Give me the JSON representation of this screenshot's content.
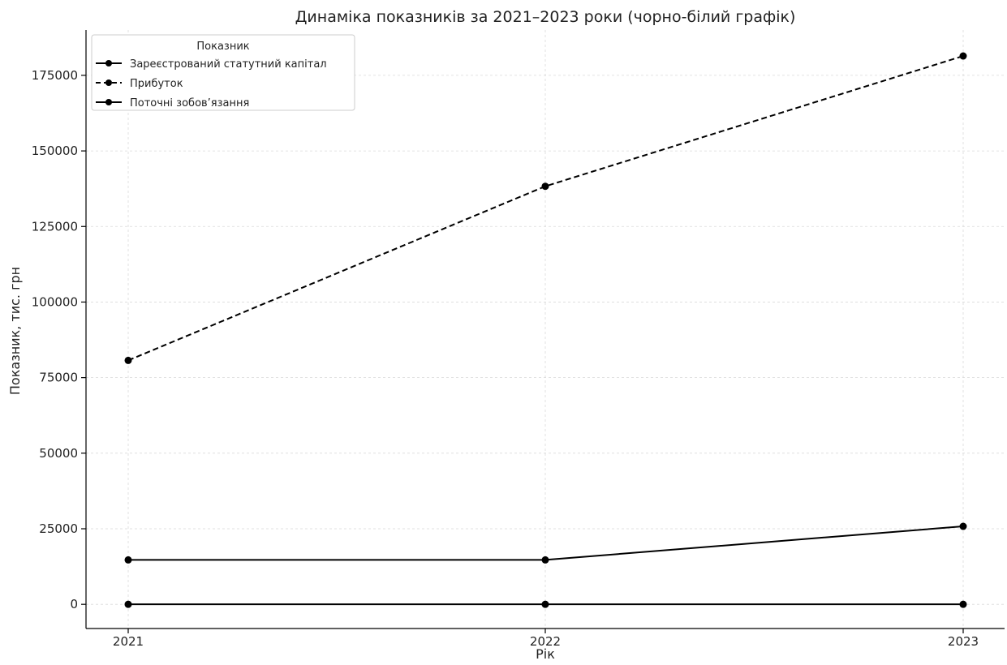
{
  "chart_data": {
    "type": "line",
    "title": "Динаміка показників за 2021–2023 роки (чорно-білий графік)",
    "xlabel": "Рік",
    "ylabel": "Показник, тис. грн",
    "x": [
      "2021",
      "2022",
      "2023"
    ],
    "ylim": [
      -8000,
      190000
    ],
    "yticks": [
      "0",
      "25000",
      "50000",
      "75000",
      "100000",
      "125000",
      "150000",
      "175000"
    ],
    "grid": true,
    "legend": {
      "title": "Показник",
      "position": "top-left"
    },
    "series": [
      {
        "name": "Зареєстрований статутний капітал",
        "values": [
          0,
          0,
          0
        ],
        "line_style": "solid",
        "color": "#000000"
      },
      {
        "name": "Прибуток",
        "values": [
          80700,
          138300,
          181400
        ],
        "line_style": "dashed",
        "color": "#000000"
      },
      {
        "name": "Поточні зобов’язання",
        "values": [
          14700,
          14700,
          25800
        ],
        "line_style": "solid",
        "color": "#000000"
      }
    ]
  }
}
